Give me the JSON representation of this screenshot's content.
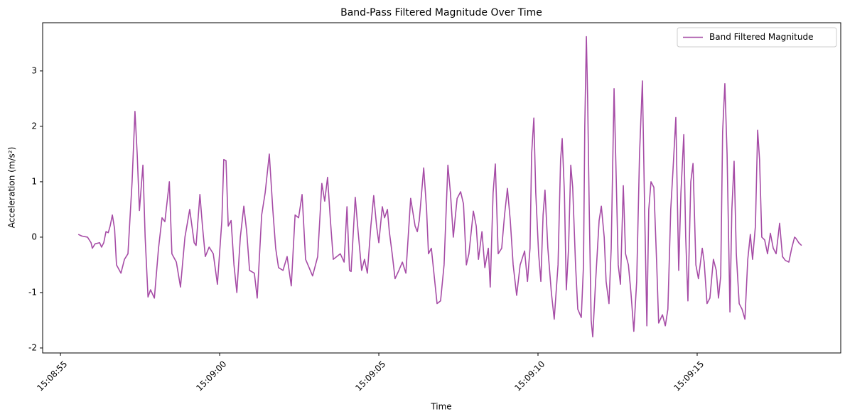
{
  "chart_data": {
    "type": "line",
    "title": "Band-Pass Filtered Magnitude Over Time",
    "x_label": "Time",
    "y_label": "Acceleration (m/s²)",
    "legend": "upper right",
    "grid": false,
    "xlim": [
      "15:08:54.44",
      "15:09:19.51"
    ],
    "xticks": [
      "15:08:55",
      "15:09:00",
      "15:09:05",
      "15:09:10",
      "15:09:15"
    ],
    "ylim": [
      -2.09,
      3.87
    ],
    "yticks": [
      -2,
      -1,
      0,
      1,
      2,
      3
    ],
    "x": [
      "15:08:55.56",
      "15:08:55.67",
      "15:08:55.85",
      "15:08:55.96",
      "15:08:56.00",
      "15:08:56.09",
      "15:08:56.23",
      "15:08:56.29",
      "15:08:56.36",
      "15:08:56.43",
      "15:08:56.50",
      "15:08:56.56",
      "15:08:56.63",
      "15:08:56.70",
      "15:08:56.76",
      "15:08:56.90",
      "15:08:57.01",
      "15:08:57.12",
      "15:08:57.25",
      "15:08:57.34",
      "15:08:57.41",
      "15:08:57.48",
      "15:08:57.59",
      "15:08:57.66",
      "15:08:57.75",
      "15:08:57.83",
      "15:08:57.95",
      "15:08:58.08",
      "15:08:58.19",
      "15:08:58.28",
      "15:08:58.42",
      "15:08:58.50",
      "15:08:58.64",
      "15:08:58.77",
      "15:08:58.91",
      "15:08:59.06",
      "15:08:59.20",
      "15:08:59.26",
      "15:08:59.38",
      "15:08:59.46",
      "15:08:59.55",
      "15:08:59.67",
      "15:08:59.80",
      "15:08:59.93",
      "15:09:00.07",
      "15:09:00.13",
      "15:09:00.20",
      "15:09:00.27",
      "15:09:00.36",
      "15:09:00.45",
      "15:09:00.54",
      "15:09:00.65",
      "15:09:00.76",
      "15:09:00.85",
      "15:09:00.94",
      "15:09:01.09",
      "15:09:01.18",
      "15:09:01.32",
      "15:09:01.43",
      "15:09:01.56",
      "15:09:01.67",
      "15:09:01.76",
      "15:09:01.85",
      "15:09:01.99",
      "15:09:02.12",
      "15:09:02.25",
      "15:09:02.37",
      "15:09:02.48",
      "15:09:02.59",
      "15:09:02.70",
      "15:09:02.81",
      "15:09:02.92",
      "15:09:03.08",
      "15:09:03.21",
      "15:09:03.30",
      "15:09:03.39",
      "15:09:03.48",
      "15:09:03.57",
      "15:09:03.68",
      "15:09:03.79",
      "15:09:03.91",
      "15:09:04.00",
      "15:09:04.08",
      "15:09:04.13",
      "15:09:04.26",
      "15:09:04.35",
      "15:09:04.46",
      "15:09:04.55",
      "15:09:04.64",
      "15:09:04.75",
      "15:09:04.84",
      "15:09:04.93",
      "15:09:05.00",
      "15:09:05.11",
      "15:09:05.18",
      "15:09:05.27",
      "15:09:05.33",
      "15:09:05.42",
      "15:09:05.51",
      "15:09:05.63",
      "15:09:05.74",
      "15:09:05.85",
      "15:09:06.00",
      "15:09:06.14",
      "15:09:06.21",
      "15:09:06.27",
      "15:09:06.41",
      "15:09:06.50",
      "15:09:06.56",
      "15:09:06.65",
      "15:09:06.74",
      "15:09:06.83",
      "15:09:06.94",
      "15:09:07.05",
      "15:09:07.17",
      "15:09:07.25",
      "15:09:07.34",
      "15:09:07.46",
      "15:09:07.57",
      "15:09:07.66",
      "15:09:07.75",
      "15:09:07.83",
      "15:09:07.97",
      "15:09:08.06",
      "15:09:08.13",
      "15:09:08.24",
      "15:09:08.33",
      "15:09:08.44",
      "15:09:08.50",
      "15:09:08.59",
      "15:09:08.66",
      "15:09:08.75",
      "15:09:08.86",
      "15:09:08.95",
      "15:09:09.04",
      "15:09:09.13",
      "15:09:09.22",
      "15:09:09.33",
      "15:09:09.44",
      "15:09:09.58",
      "15:09:09.67",
      "15:09:09.75",
      "15:09:09.80",
      "15:09:09.87",
      "15:09:09.93",
      "15:09:10.02",
      "15:09:10.09",
      "15:09:10.16",
      "15:09:10.22",
      "15:09:10.31",
      "15:09:10.42",
      "15:09:10.51",
      "15:09:10.63",
      "15:09:10.71",
      "15:09:10.76",
      "15:09:10.83",
      "15:09:10.89",
      "15:09:10.96",
      "15:09:11.03",
      "15:09:11.09",
      "15:09:11.18",
      "15:09:11.25",
      "15:09:11.36",
      "15:09:11.43",
      "15:09:11.47",
      "15:09:11.52",
      "15:09:11.56",
      "15:09:11.61",
      "15:09:11.67",
      "15:09:11.72",
      "15:09:11.81",
      "15:09:11.92",
      "15:09:11.99",
      "15:09:12.08",
      "15:09:12.14",
      "15:09:12.23",
      "15:09:12.30",
      "15:09:12.39",
      "15:09:12.46",
      "15:09:12.52",
      "15:09:12.59",
      "15:09:12.68",
      "15:09:12.75",
      "15:09:12.84",
      "15:09:12.92",
      "15:09:13.01",
      "15:09:13.10",
      "15:09:13.19",
      "15:09:13.28",
      "15:09:13.35",
      "15:09:13.42",
      "15:09:13.48",
      "15:09:13.55",
      "15:09:13.64",
      "15:09:13.73",
      "15:09:13.79",
      "15:09:13.91",
      "15:09:14.00",
      "15:09:14.08",
      "15:09:14.17",
      "15:09:14.24",
      "15:09:14.33",
      "15:09:14.42",
      "15:09:14.49",
      "15:09:14.58",
      "15:09:14.64",
      "15:09:14.71",
      "15:09:14.80",
      "15:09:14.87",
      "15:09:14.96",
      "15:09:15.04",
      "15:09:15.16",
      "15:09:15.22",
      "15:09:15.31",
      "15:09:15.40",
      "15:09:15.51",
      "15:09:15.60",
      "15:09:15.67",
      "15:09:15.74",
      "15:09:15.80",
      "15:09:15.87",
      "15:09:15.94",
      "15:09:16.03",
      "15:09:16.09",
      "15:09:16.16",
      "15:09:16.23",
      "15:09:16.32",
      "15:09:16.41",
      "15:09:16.50",
      "15:09:16.59",
      "15:09:16.67",
      "15:09:16.74",
      "15:09:16.83",
      "15:09:16.90",
      "15:09:16.96",
      "15:09:17.03",
      "15:09:17.12",
      "15:09:17.21",
      "15:09:17.30",
      "15:09:17.39",
      "15:09:17.48",
      "15:09:17.59",
      "15:09:17.68",
      "15:09:17.77",
      "15:09:17.88",
      "15:09:17.97",
      "15:09:18.06",
      "15:09:18.10",
      "15:09:18.19",
      "15:09:18.28"
    ],
    "series": [
      {
        "name": "Band Filtered Magnitude",
        "color": "#a64ca6",
        "values": [
          0.05,
          0.02,
          0.0,
          -0.1,
          -0.2,
          -0.12,
          -0.1,
          -0.18,
          -0.1,
          0.1,
          0.08,
          0.2,
          0.4,
          0.15,
          -0.5,
          -0.65,
          -0.4,
          -0.3,
          1.0,
          2.27,
          1.5,
          0.48,
          1.3,
          0.0,
          -1.08,
          -0.95,
          -1.1,
          -0.2,
          0.35,
          0.28,
          1.0,
          -0.3,
          -0.45,
          -0.9,
          0.0,
          0.5,
          -0.1,
          -0.15,
          0.77,
          0.2,
          -0.35,
          -0.18,
          -0.3,
          -0.85,
          0.3,
          1.4,
          1.38,
          0.2,
          0.3,
          -0.5,
          -1.0,
          0.0,
          0.56,
          0.1,
          -0.6,
          -0.65,
          -1.1,
          0.4,
          0.8,
          1.5,
          0.5,
          -0.2,
          -0.55,
          -0.6,
          -0.35,
          -0.88,
          0.4,
          0.35,
          0.77,
          -0.4,
          -0.55,
          -0.7,
          -0.35,
          0.97,
          0.65,
          1.08,
          0.3,
          -0.4,
          -0.35,
          -0.3,
          -0.45,
          0.55,
          -0.6,
          -0.62,
          0.72,
          0.1,
          -0.6,
          -0.4,
          -0.65,
          0.2,
          0.75,
          0.2,
          -0.1,
          0.55,
          0.35,
          0.5,
          0.1,
          -0.3,
          -0.75,
          -0.6,
          -0.45,
          -0.65,
          0.7,
          0.2,
          0.1,
          0.3,
          1.25,
          0.5,
          -0.3,
          -0.2,
          -0.7,
          -1.2,
          -1.15,
          -0.5,
          1.3,
          0.8,
          0.0,
          0.7,
          0.82,
          0.6,
          -0.5,
          -0.3,
          0.47,
          0.2,
          -0.4,
          0.1,
          -0.55,
          -0.2,
          -0.9,
          0.8,
          1.32,
          -0.3,
          -0.2,
          0.4,
          0.88,
          0.3,
          -0.5,
          -1.05,
          -0.5,
          -0.25,
          -0.8,
          -0.2,
          1.5,
          2.15,
          0.8,
          -0.3,
          -0.8,
          0.4,
          0.85,
          -0.2,
          -1.0,
          -1.48,
          -0.5,
          1.4,
          1.78,
          0.8,
          -0.95,
          -0.2,
          1.3,
          0.9,
          -0.5,
          -1.3,
          -1.45,
          -0.5,
          2.0,
          3.62,
          2.5,
          0.5,
          -1.5,
          -1.8,
          -0.8,
          0.3,
          0.56,
          0.0,
          -0.8,
          -1.2,
          -0.2,
          2.68,
          1.0,
          -0.5,
          -0.85,
          0.93,
          -0.3,
          -0.5,
          -1.0,
          -1.7,
          -0.8,
          1.5,
          2.82,
          0.5,
          -1.6,
          0.5,
          1.0,
          0.9,
          -0.5,
          -1.55,
          -1.4,
          -1.6,
          -1.3,
          0.5,
          1.2,
          2.16,
          -0.6,
          0.8,
          1.85,
          0.0,
          -1.15,
          1.0,
          1.33,
          -0.5,
          -0.75,
          -0.2,
          -0.45,
          -1.2,
          -1.1,
          -0.4,
          -0.6,
          -1.1,
          -0.7,
          1.9,
          2.77,
          1.5,
          -1.35,
          0.5,
          1.37,
          -0.3,
          -1.2,
          -1.3,
          -1.48,
          -0.4,
          0.05,
          -0.4,
          0.2,
          1.93,
          1.4,
          0.0,
          -0.05,
          -0.3,
          0.07,
          -0.2,
          -0.3,
          0.25,
          -0.35,
          -0.42,
          -0.45,
          -0.2,
          0.0,
          -0.02,
          -0.1,
          -0.15
        ]
      }
    ]
  }
}
